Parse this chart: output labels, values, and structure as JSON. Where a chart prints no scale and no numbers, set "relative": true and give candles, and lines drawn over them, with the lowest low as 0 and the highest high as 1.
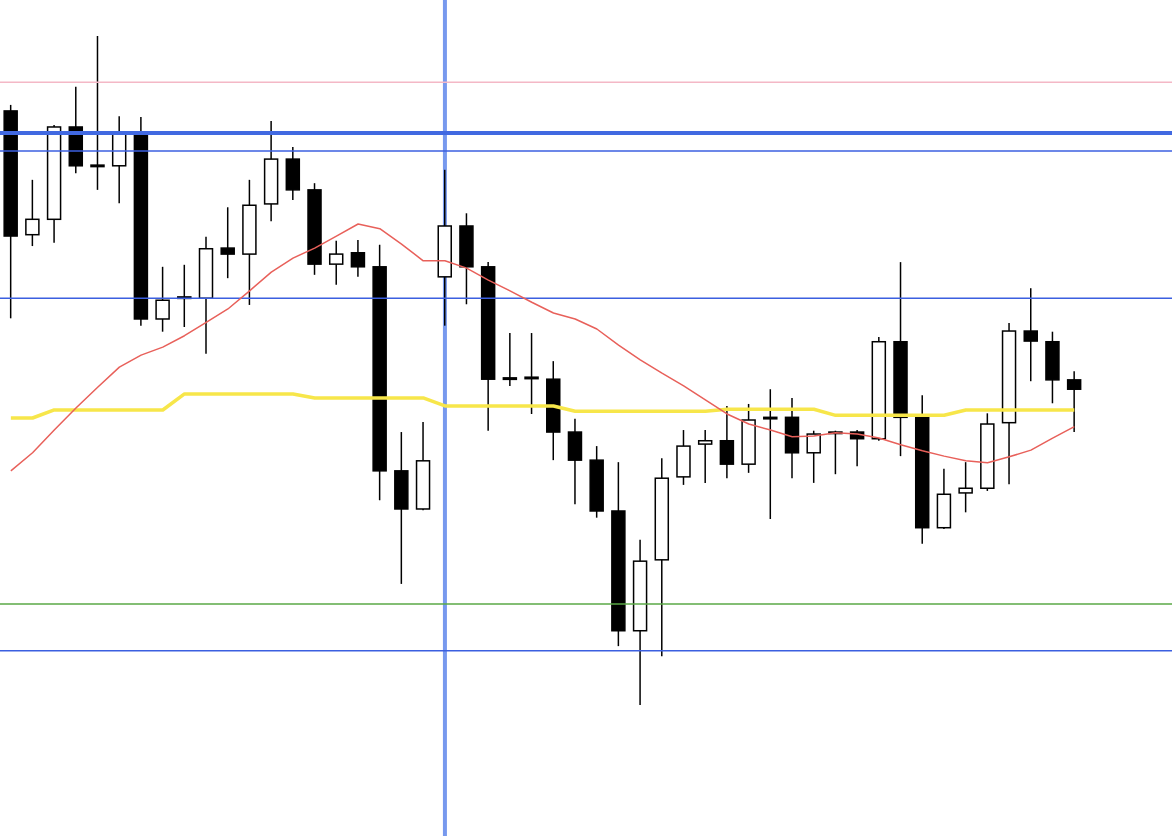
{
  "chart_data": {
    "type": "candlestick",
    "relative": true,
    "tick_labels": false,
    "categories": [
      null,
      null,
      null,
      null,
      null,
      null,
      null,
      null,
      null,
      null,
      null,
      null,
      null,
      null,
      null,
      null,
      null,
      null,
      null,
      null,
      null,
      null,
      null,
      null,
      null,
      null,
      null,
      null,
      null,
      null,
      null,
      null,
      null,
      null,
      null,
      null,
      null,
      null,
      null,
      null,
      null,
      null,
      null,
      null,
      null,
      null,
      null,
      null,
      null,
      null,
      null,
      null,
      null,
      null
    ],
    "ohlc": [
      [
        0.888,
        0.897,
        0.578,
        0.701
      ],
      [
        0.703,
        0.785,
        0.686,
        0.726
      ],
      [
        0.726,
        0.867,
        0.691,
        0.864
      ],
      [
        0.864,
        0.924,
        0.795,
        0.806
      ],
      [
        0.807,
        1,
        0.77,
        0.806
      ],
      [
        0.806,
        0.88,
        0.75,
        0.854
      ],
      [
        0.855,
        0.879,
        0.567,
        0.577
      ],
      [
        0.577,
        0.655,
        0.558,
        0.605
      ],
      [
        0.608,
        0.658,
        0.565,
        0.61
      ],
      [
        0.608,
        0.7,
        0.525,
        0.682
      ],
      [
        0.683,
        0.744,
        0.638,
        0.674
      ],
      [
        0.674,
        0.785,
        0.598,
        0.747
      ],
      [
        0.749,
        0.873,
        0.723,
        0.816
      ],
      [
        0.816,
        0.834,
        0.755,
        0.77
      ],
      [
        0.77,
        0.78,
        0.643,
        0.659
      ],
      [
        0.659,
        0.694,
        0.628,
        0.674
      ],
      [
        0.676,
        0.695,
        0.64,
        0.655
      ],
      [
        0.655,
        0.688,
        0.306,
        0.35
      ],
      [
        0.35,
        0.408,
        0.181,
        0.293
      ],
      [
        0.293,
        0.423,
        0.291,
        0.365
      ],
      [
        0.64,
        0.8,
        0.567,
        0.716
      ],
      [
        0.716,
        0.735,
        0.599,
        0.655
      ],
      [
        0.655,
        0.662,
        0.41,
        0.487
      ],
      [
        0.489,
        0.556,
        0.477,
        0.487
      ],
      [
        0.489,
        0.556,
        0.435,
        0.49
      ],
      [
        0.487,
        0.514,
        0.366,
        0.408
      ],
      [
        0.408,
        0.428,
        0.3,
        0.366
      ],
      [
        0.366,
        0.387,
        0.28,
        0.29
      ],
      [
        0.29,
        0.363,
        0.088,
        0.111
      ],
      [
        0.111,
        0.247,
        0,
        0.215
      ],
      [
        0.217,
        0.369,
        0.073,
        0.339
      ],
      [
        0.341,
        0.411,
        0.329,
        0.387
      ],
      [
        0.39,
        0.411,
        0.332,
        0.395
      ],
      [
        0.395,
        0.447,
        0.339,
        0.36
      ],
      [
        0.36,
        0.45,
        0.347,
        0.426
      ],
      [
        0.43,
        0.472,
        0.278,
        0.429
      ],
      [
        0.43,
        0.459,
        0.339,
        0.377
      ],
      [
        0.377,
        0.41,
        0.332,
        0.405
      ],
      [
        0.407,
        0.41,
        0.345,
        0.408
      ],
      [
        0.408,
        0.411,
        0.357,
        0.398
      ],
      [
        0.398,
        0.55,
        0.395,
        0.543
      ],
      [
        0.543,
        0.662,
        0.372,
        0.43
      ],
      [
        0.43,
        0.463,
        0.241,
        0.265
      ],
      [
        0.265,
        0.353,
        0.263,
        0.315
      ],
      [
        0.317,
        0.363,
        0.288,
        0.324
      ],
      [
        0.324,
        0.436,
        0.32,
        0.42
      ],
      [
        0.422,
        0.571,
        0.33,
        0.559
      ],
      [
        0.559,
        0.623,
        0.484,
        0.544
      ],
      [
        0.543,
        0.558,
        0.451,
        0.486
      ],
      [
        0.486,
        0.499,
        0.408,
        0.472
      ],
      null,
      null,
      null,
      null
    ],
    "series": [
      {
        "type": "line",
        "color": "#f7e64a",
        "values": [
          0.429,
          0.429,
          0.441,
          0.441,
          0.441,
          0.441,
          0.441,
          0.441,
          0.465,
          0.465,
          0.465,
          0.465,
          0.465,
          0.465,
          0.459,
          0.459,
          0.459,
          0.459,
          0.459,
          0.459,
          0.447,
          0.447,
          0.447,
          0.447,
          0.447,
          0.447,
          0.439,
          0.439,
          0.439,
          0.439,
          0.439,
          0.439,
          0.439,
          0.442,
          0.442,
          0.442,
          0.442,
          0.442,
          0.433,
          0.433,
          0.433,
          0.433,
          0.433,
          0.433,
          0.441,
          0.441,
          0.441,
          0.441,
          0.441,
          0.441,
          null,
          null,
          null,
          null
        ]
      },
      {
        "type": "line",
        "color": "#e8605a",
        "values": [
          0.35,
          0.377,
          0.411,
          0.444,
          0.475,
          0.505,
          0.523,
          0.535,
          0.552,
          0.572,
          0.592,
          0.619,
          0.647,
          0.668,
          0.683,
          0.701,
          0.719,
          0.712,
          0.689,
          0.664,
          0.664,
          0.653,
          0.635,
          0.619,
          0.602,
          0.586,
          0.577,
          0.562,
          0.538,
          0.516,
          0.496,
          0.477,
          0.456,
          0.435,
          0.42,
          0.411,
          0.401,
          0.402,
          0.407,
          0.405,
          0.399,
          0.389,
          0.38,
          0.372,
          0.365,
          0.362,
          0.371,
          0.381,
          0.399,
          0.416,
          null,
          null,
          null,
          null
        ]
      }
    ],
    "ref_lines": [
      {
        "axis": "y",
        "value": 0.931,
        "color": "#f4b8c6"
      },
      {
        "axis": "y",
        "value": 0.855,
        "color": "#4169e1"
      },
      {
        "axis": "y",
        "value": 0.828,
        "color": "#3b5fe0"
      },
      {
        "axis": "y",
        "value": 0.608,
        "color": "#3b5fe0"
      },
      {
        "axis": "y",
        "value": 0.151,
        "color": "#5aa846"
      },
      {
        "axis": "y",
        "value": 0.081,
        "color": "#3b5fe0"
      }
    ]
  }
}
